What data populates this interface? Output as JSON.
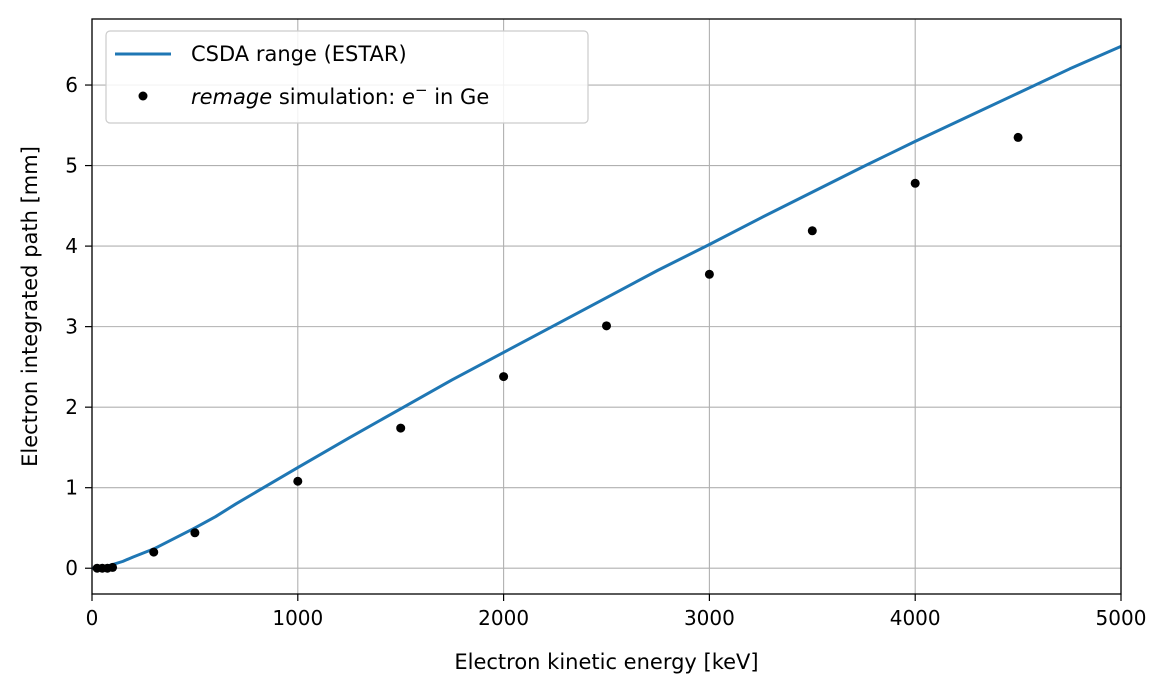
{
  "chart_data": {
    "type": "line",
    "xlabel": "Electron kinetic energy [keV]",
    "ylabel": "Electron integrated path [mm]",
    "xlim": [
      0,
      5000
    ],
    "ylim": [
      -0.32,
      6.82
    ],
    "xticks": [
      0,
      1000,
      2000,
      3000,
      4000,
      5000
    ],
    "yticks": [
      0,
      1,
      2,
      3,
      4,
      5,
      6
    ],
    "grid": true,
    "legend_position": "top-left",
    "series": [
      {
        "name": "CSDA range (ESTAR)",
        "kind": "line",
        "color": "#1f77b4",
        "x": [
          0,
          50,
          100,
          150,
          200,
          300,
          400,
          500,
          600,
          700,
          800,
          1000,
          1250,
          1500,
          1750,
          2000,
          2250,
          2500,
          2750,
          3000,
          3250,
          3500,
          3750,
          4000,
          4250,
          4500,
          4750,
          5000
        ],
        "y": [
          0,
          0.01,
          0.045,
          0.085,
          0.14,
          0.24,
          0.37,
          0.5,
          0.64,
          0.8,
          0.95,
          1.25,
          1.62,
          1.98,
          2.34,
          2.68,
          3.02,
          3.36,
          3.7,
          4.02,
          4.35,
          4.67,
          4.99,
          5.3,
          5.6,
          5.9,
          6.2,
          6.48
        ]
      },
      {
        "name_prefix_italic": "remage",
        "name_rest": " simulation: ",
        "name_symbol": "e",
        "name_superscript": "−",
        "name_suffix": " in Ge",
        "kind": "scatter",
        "color": "#000000",
        "x": [
          25,
          50,
          75,
          100,
          300,
          500,
          1000,
          1500,
          2000,
          2500,
          3000,
          3500,
          4000,
          4500
        ],
        "y": [
          0.0,
          0.0,
          0.0,
          0.01,
          0.2,
          0.44,
          1.08,
          1.74,
          2.38,
          3.01,
          3.65,
          4.19,
          4.78,
          5.35
        ]
      }
    ]
  }
}
